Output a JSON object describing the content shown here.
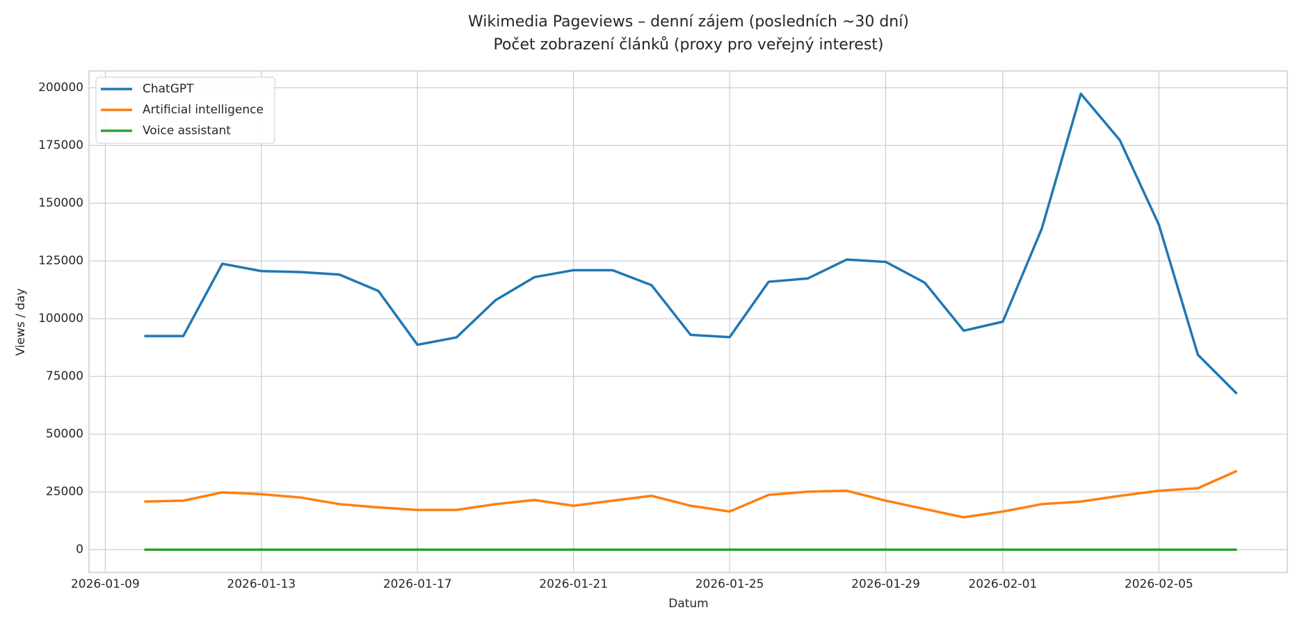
{
  "chart_data": {
    "type": "line",
    "title": "Wikimedia Pageviews – denní zájem (posledních ~30 dní)",
    "subtitle": "Počet zobrazení článků (proxy pro veřejný interest)",
    "xlabel": "Datum",
    "ylabel": "Views / day",
    "x": [
      "2026-01-10",
      "2026-01-11",
      "2026-01-12",
      "2026-01-13",
      "2026-01-14",
      "2026-01-15",
      "2026-01-16",
      "2026-01-17",
      "2026-01-18",
      "2026-01-19",
      "2026-01-20",
      "2026-01-21",
      "2026-01-22",
      "2026-01-23",
      "2026-01-24",
      "2026-01-25",
      "2026-01-26",
      "2026-01-27",
      "2026-01-28",
      "2026-01-29",
      "2026-01-30",
      "2026-01-31",
      "2026-02-01",
      "2026-02-02",
      "2026-02-03",
      "2026-02-04",
      "2026-02-05",
      "2026-02-06",
      "2026-02-07"
    ],
    "series": [
      {
        "name": "ChatGPT",
        "color": "#1f77b4",
        "values": [
          92500,
          92500,
          123800,
          120600,
          120200,
          119100,
          112000,
          88700,
          91900,
          108000,
          118000,
          121000,
          121000,
          114500,
          93000,
          92000,
          116000,
          117400,
          125600,
          124600,
          115600,
          94800,
          98700,
          139000,
          197400,
          177300,
          140700,
          84400,
          67500
        ]
      },
      {
        "name": "Artificial intelligence",
        "color": "#ff7f0e",
        "values": [
          20800,
          21200,
          24800,
          24000,
          22600,
          19700,
          18300,
          17200,
          17200,
          19700,
          21500,
          19000,
          21200,
          23300,
          19000,
          16500,
          23700,
          25100,
          25500,
          21200,
          17600,
          14000,
          16500,
          19700,
          20800,
          23300,
          25500,
          26600,
          34100
        ]
      },
      {
        "name": "Voice assistant",
        "color": "#2ca02c",
        "values": [
          0,
          0,
          0,
          0,
          0,
          0,
          0,
          0,
          0,
          0,
          0,
          0,
          0,
          0,
          0,
          0,
          0,
          0,
          0,
          0,
          0,
          0,
          0,
          0,
          0,
          0,
          0,
          0,
          0
        ]
      }
    ],
    "xlim": [
      "2026-01-08T14:00",
      "2026-02-08T07:00"
    ],
    "xticks": [
      "2026-01-09",
      "2026-01-13",
      "2026-01-17",
      "2026-01-21",
      "2026-01-25",
      "2026-01-29",
      "2026-02-01",
      "2026-02-05"
    ],
    "ylim": [
      -9870,
      207270
    ],
    "yticks": [
      0,
      25000,
      50000,
      75000,
      100000,
      125000,
      150000,
      175000,
      200000
    ],
    "grid": true,
    "legend": "upper left"
  }
}
